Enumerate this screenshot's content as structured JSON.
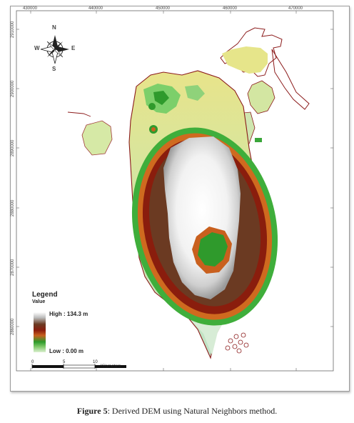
{
  "map": {
    "x_ticks": [
      "430000",
      "440000",
      "450000",
      "460000",
      "470000"
    ],
    "y_ticks": [
      "2910000",
      "2900000",
      "2890000",
      "2880000",
      "2870000",
      "2860000"
    ],
    "compass": {
      "n": "N",
      "s": "S",
      "e": "E",
      "w": "W"
    },
    "legend": {
      "title": "Legend",
      "subtitle": "Value",
      "high": "High : 134.3 m",
      "low": "Low : 0.00 m"
    },
    "scale_bar": {
      "labels": [
        "0",
        "5",
        "10"
      ],
      "unit": "Kilometers"
    },
    "colors": {
      "high": "#ffffff",
      "brown": "#6b3a22",
      "red": "#8a1d0d",
      "orange": "#c9601e",
      "green": "#2c9a2a",
      "light_green": "#cfe8b6",
      "low": "#dcefd1",
      "outline": "#8b1a1a"
    }
  },
  "caption": {
    "label": "Figure 5",
    "text": ": Derived DEM using Natural Neighbors method."
  }
}
